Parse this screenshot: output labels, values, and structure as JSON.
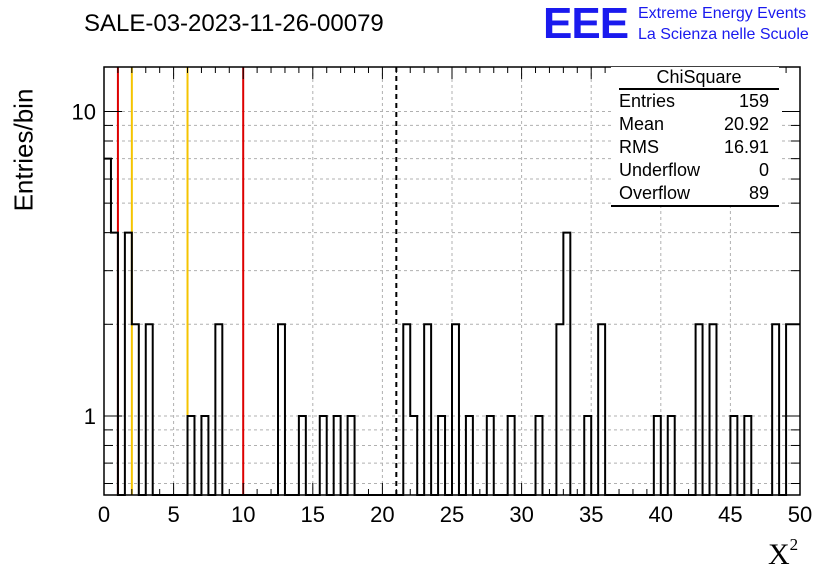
{
  "page": {
    "title": "SALE-03-2023-11-26-00079",
    "logo": {
      "mark": "EEE",
      "line1": "Extreme Energy Events",
      "line2": "La Scienza nelle Scuole"
    }
  },
  "stats_box": {
    "title": "ChiSquare",
    "rows": [
      {
        "label": "Entries",
        "value": "159"
      },
      {
        "label": "Mean",
        "value": "20.92"
      },
      {
        "label": "RMS",
        "value": "16.91"
      },
      {
        "label": "Underflow",
        "value": "0"
      },
      {
        "label": "Overflow",
        "value": "89"
      }
    ]
  },
  "chart_data": {
    "type": "histogram",
    "title": "SALE-03-2023-11-26-00079",
    "xlabel": "X",
    "xlabel_superscript": "2",
    "ylabel": "Entries/bin",
    "xlim": [
      0,
      50
    ],
    "ylim": [
      0.55,
      14
    ],
    "yscale": "log",
    "bin_width": 0.5,
    "x_ticks": [
      "0",
      "5",
      "10",
      "15",
      "20",
      "25",
      "30",
      "35",
      "40",
      "45",
      "50"
    ],
    "y_ticks": [
      "1",
      "10"
    ],
    "grid": true,
    "counts": [
      7,
      4,
      0,
      4,
      2,
      0,
      2,
      0,
      0,
      0,
      0,
      0,
      1,
      0,
      1,
      0,
      2,
      0,
      0,
      0,
      0,
      0,
      0,
      0,
      0,
      2,
      0,
      0,
      1,
      0,
      0,
      1,
      0,
      1,
      0,
      1,
      0,
      0,
      0,
      0,
      0,
      0,
      0,
      2,
      1,
      0,
      2,
      0,
      1,
      0,
      2,
      0,
      1,
      0,
      0,
      1,
      0,
      0,
      1,
      0,
      0,
      0,
      1,
      0,
      0,
      2,
      4,
      0,
      0,
      1,
      0,
      2,
      0,
      0,
      0,
      0,
      0,
      0,
      0,
      1,
      0,
      1,
      0,
      0,
      0,
      2,
      0,
      2,
      0,
      0,
      1,
      0,
      1,
      0,
      0,
      0,
      2,
      0,
      2,
      2
    ],
    "vertical_lines": [
      {
        "x": 1,
        "color": "#dd0000",
        "style": "solid"
      },
      {
        "x": 2,
        "color": "#f5c400",
        "style": "solid"
      },
      {
        "x": 6,
        "color": "#f5c400",
        "style": "solid"
      },
      {
        "x": 10,
        "color": "#dd0000",
        "style": "solid"
      },
      {
        "x": 21,
        "color": "#000000",
        "style": "dashed"
      }
    ],
    "stats": {
      "name": "ChiSquare",
      "entries": 159,
      "mean": 20.92,
      "rms": 16.91,
      "underflow": 0,
      "overflow": 89
    }
  }
}
